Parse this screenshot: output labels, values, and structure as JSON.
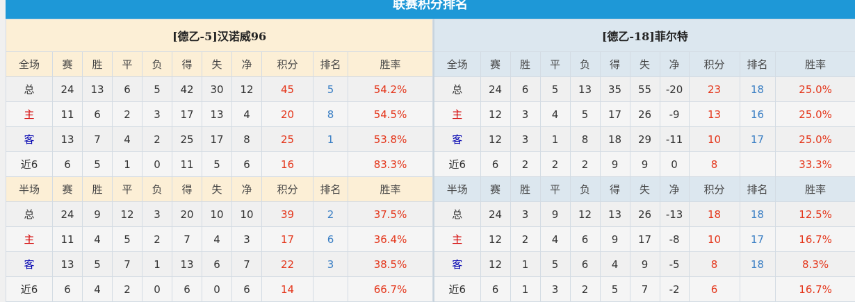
{
  "title": "联赛积分排名",
  "colors": {
    "accent": "#1e98d7",
    "points": "#e4361b",
    "rank": "#3b7fc4",
    "home": "#d40000",
    "away": "#0000b0"
  },
  "teams": [
    {
      "name": "[德乙-5]汉诺威96",
      "sections": [
        {
          "headers": [
            "全场",
            "赛",
            "胜",
            "平",
            "负",
            "得",
            "失",
            "净",
            "积分",
            "排名",
            "胜率"
          ],
          "rows": [
            [
              "总",
              "24",
              "13",
              "6",
              "5",
              "42",
              "30",
              "12",
              "45",
              "5",
              "54.2%"
            ],
            [
              "主",
              "11",
              "6",
              "2",
              "3",
              "17",
              "13",
              "4",
              "20",
              "8",
              "54.5%"
            ],
            [
              "客",
              "13",
              "7",
              "4",
              "2",
              "25",
              "17",
              "8",
              "25",
              "1",
              "53.8%"
            ],
            [
              "近6",
              "6",
              "5",
              "1",
              "0",
              "11",
              "5",
              "6",
              "16",
              "",
              "83.3%"
            ]
          ]
        },
        {
          "headers": [
            "半场",
            "赛",
            "胜",
            "平",
            "负",
            "得",
            "失",
            "净",
            "积分",
            "排名",
            "胜率"
          ],
          "rows": [
            [
              "总",
              "24",
              "9",
              "12",
              "3",
              "20",
              "10",
              "10",
              "39",
              "2",
              "37.5%"
            ],
            [
              "主",
              "11",
              "4",
              "5",
              "2",
              "7",
              "4",
              "3",
              "17",
              "6",
              "36.4%"
            ],
            [
              "客",
              "13",
              "5",
              "7",
              "1",
              "13",
              "6",
              "7",
              "22",
              "3",
              "38.5%"
            ],
            [
              "近6",
              "6",
              "4",
              "2",
              "0",
              "6",
              "0",
              "6",
              "14",
              "",
              "66.7%"
            ]
          ]
        }
      ]
    },
    {
      "name": "[德乙-18]菲尔特",
      "sections": [
        {
          "headers": [
            "全场",
            "赛",
            "胜",
            "平",
            "负",
            "得",
            "失",
            "净",
            "积分",
            "排名",
            "胜率"
          ],
          "rows": [
            [
              "总",
              "24",
              "6",
              "5",
              "13",
              "35",
              "55",
              "-20",
              "23",
              "18",
              "25.0%"
            ],
            [
              "主",
              "12",
              "3",
              "4",
              "5",
              "17",
              "26",
              "-9",
              "13",
              "16",
              "25.0%"
            ],
            [
              "客",
              "12",
              "3",
              "1",
              "8",
              "18",
              "29",
              "-11",
              "10",
              "17",
              "25.0%"
            ],
            [
              "近6",
              "6",
              "2",
              "2",
              "2",
              "9",
              "9",
              "0",
              "8",
              "",
              "33.3%"
            ]
          ]
        },
        {
          "headers": [
            "半场",
            "赛",
            "胜",
            "平",
            "负",
            "得",
            "失",
            "净",
            "积分",
            "排名",
            "胜率"
          ],
          "rows": [
            [
              "总",
              "24",
              "3",
              "9",
              "12",
              "13",
              "26",
              "-13",
              "18",
              "18",
              "12.5%"
            ],
            [
              "主",
              "12",
              "2",
              "4",
              "6",
              "9",
              "17",
              "-8",
              "10",
              "17",
              "16.7%"
            ],
            [
              "客",
              "12",
              "1",
              "5",
              "6",
              "4",
              "9",
              "-5",
              "8",
              "18",
              "8.3%"
            ],
            [
              "近6",
              "6",
              "1",
              "3",
              "2",
              "5",
              "7",
              "-2",
              "6",
              "",
              "16.7%"
            ]
          ]
        }
      ]
    }
  ]
}
